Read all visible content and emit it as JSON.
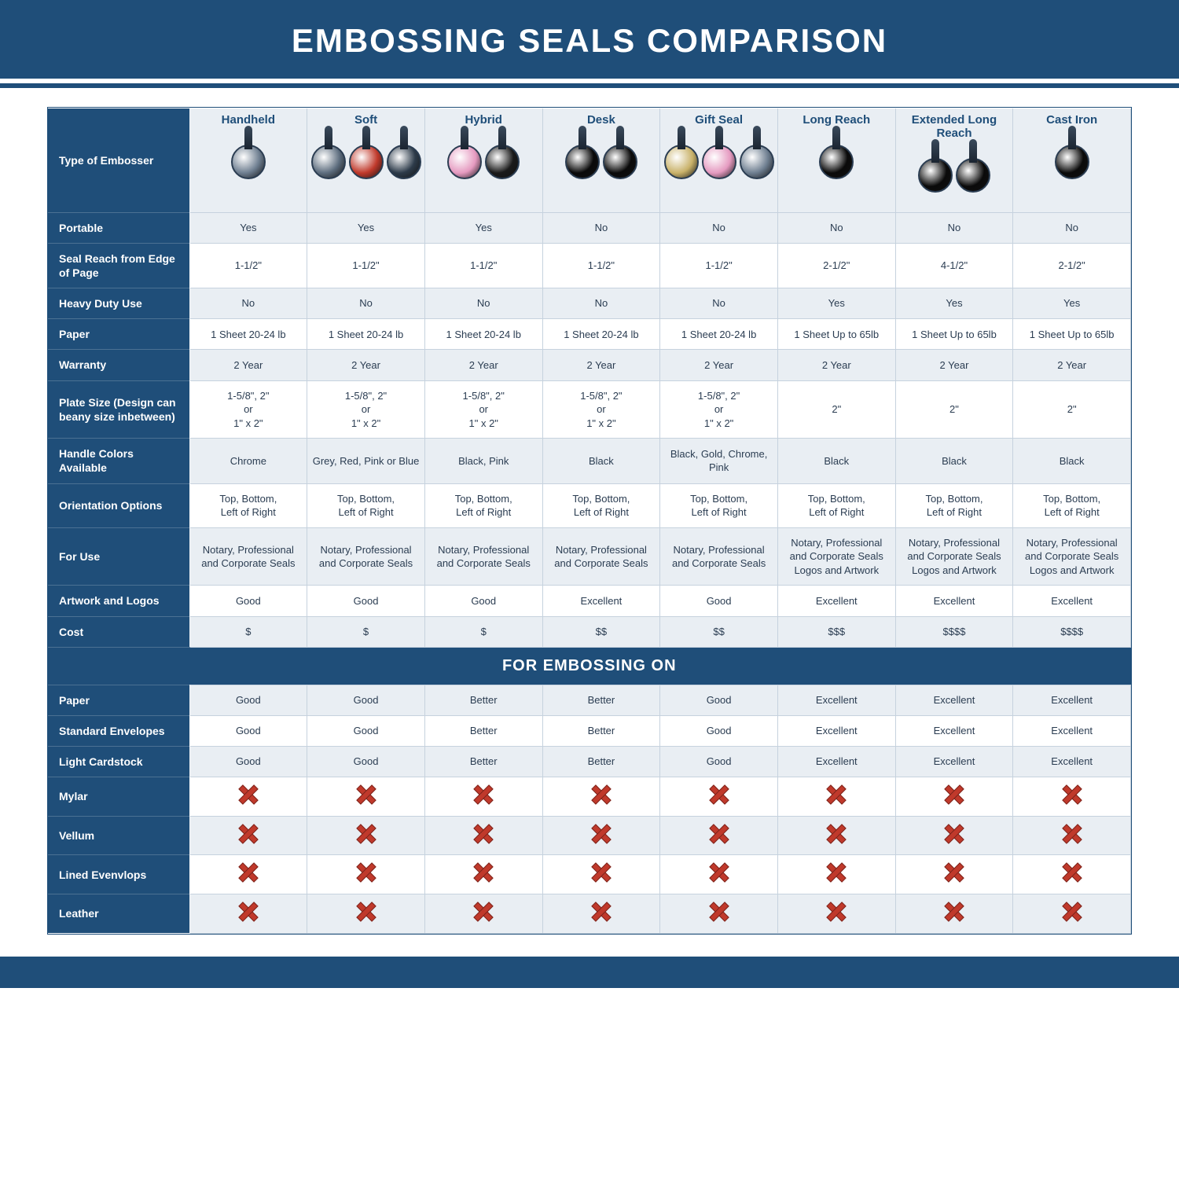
{
  "title": "EMBOSSING SEALS COMPARISON",
  "section_header": "FOR EMBOSSING ON",
  "colors": {
    "primary": "#1f4e79",
    "header_bg": "#e9eef3",
    "alt_row": "#e9eef3",
    "border": "#c6d2de",
    "text": "#2b3d52",
    "x_fill": "#c0392b",
    "x_border": "#7b241c"
  },
  "table": {
    "type": "comparison-table",
    "row_header_label": "Type of Embosser",
    "columns": [
      {
        "label": "Handheld",
        "icons": 1,
        "tints": [
          "#6e7e90"
        ]
      },
      {
        "label": "Soft",
        "icons": 3,
        "tints": [
          "#5d6d7e",
          "#c0392b",
          "#2d3b4a"
        ]
      },
      {
        "label": "Hybrid",
        "icons": 2,
        "tints": [
          "#e59ac0",
          "#1a1a1a"
        ]
      },
      {
        "label": "Desk",
        "icons": 2,
        "tints": [
          "#0a0a0a",
          "#0a0a0a"
        ]
      },
      {
        "label": "Gift Seal",
        "icons": 3,
        "tints": [
          "#c9b26a",
          "#e59ac0",
          "#6e7e90"
        ]
      },
      {
        "label": "Long Reach",
        "icons": 1,
        "tints": [
          "#0a0a0a"
        ]
      },
      {
        "label": "Extended Long Reach",
        "icons": 2,
        "tints": [
          "#0a0a0a",
          "#0a0a0a"
        ]
      },
      {
        "label": "Cast Iron",
        "icons": 1,
        "tints": [
          "#0a0a0a"
        ]
      }
    ],
    "specs": [
      {
        "label": "Portable",
        "alt": true,
        "cells": [
          "Yes",
          "Yes",
          "Yes",
          "No",
          "No",
          "No",
          "No",
          "No"
        ]
      },
      {
        "label": "Seal Reach from Edge of Page",
        "alt": false,
        "cells": [
          "1-1/2\"",
          "1-1/2\"",
          "1-1/2\"",
          "1-1/2\"",
          "1-1/2\"",
          "2-1/2\"",
          "4-1/2\"",
          "2-1/2\""
        ]
      },
      {
        "label": "Heavy Duty Use",
        "alt": true,
        "cells": [
          "No",
          "No",
          "No",
          "No",
          "No",
          "Yes",
          "Yes",
          "Yes"
        ]
      },
      {
        "label": "Paper",
        "alt": false,
        "cells": [
          "1 Sheet 20-24 lb",
          "1 Sheet 20-24 lb",
          "1 Sheet 20-24 lb",
          "1 Sheet 20-24 lb",
          "1 Sheet 20-24 lb",
          "1 Sheet Up to 65lb",
          "1 Sheet Up to 65lb",
          "1 Sheet Up to 65lb"
        ]
      },
      {
        "label": "Warranty",
        "alt": true,
        "cells": [
          "2 Year",
          "2 Year",
          "2 Year",
          "2 Year",
          "2 Year",
          "2 Year",
          "2 Year",
          "2 Year"
        ]
      },
      {
        "label": "Plate Size (Design can beany size inbetween)",
        "alt": false,
        "cells": [
          "1-5/8\", 2\"\nor\n1\" x 2\"",
          "1-5/8\", 2\"\nor\n1\" x 2\"",
          "1-5/8\", 2\"\nor\n1\" x 2\"",
          "1-5/8\", 2\"\nor\n1\" x 2\"",
          "1-5/8\", 2\"\nor\n1\" x 2\"",
          "2\"",
          "2\"",
          "2\""
        ]
      },
      {
        "label": "Handle Colors Available",
        "alt": true,
        "cells": [
          "Chrome",
          "Grey, Red, Pink or Blue",
          "Black, Pink",
          "Black",
          "Black, Gold, Chrome, Pink",
          "Black",
          "Black",
          "Black"
        ]
      },
      {
        "label": "Orientation Options",
        "alt": false,
        "cells": [
          "Top, Bottom,\nLeft of Right",
          "Top, Bottom,\nLeft of Right",
          "Top, Bottom,\nLeft of Right",
          "Top, Bottom,\nLeft of Right",
          "Top, Bottom,\nLeft of Right",
          "Top, Bottom,\nLeft of Right",
          "Top, Bottom,\nLeft of Right",
          "Top, Bottom,\nLeft of Right"
        ]
      },
      {
        "label": "For Use",
        "alt": true,
        "cells": [
          "Notary, Professional and Corporate Seals",
          "Notary, Professional and Corporate Seals",
          "Notary, Professional and Corporate Seals",
          "Notary, Professional and Corporate Seals",
          "Notary, Professional and Corporate Seals",
          "Notary, Professional and Corporate Seals Logos and Artwork",
          "Notary, Professional and Corporate Seals Logos and Artwork",
          "Notary, Professional and Corporate Seals Logos and Artwork"
        ]
      },
      {
        "label": "Artwork and Logos",
        "alt": false,
        "cells": [
          "Good",
          "Good",
          "Good",
          "Excellent",
          "Good",
          "Excellent",
          "Excellent",
          "Excellent"
        ]
      },
      {
        "label": "Cost",
        "alt": true,
        "cells": [
          "$",
          "$",
          "$",
          "$$",
          "$$",
          "$$$",
          "$$$$",
          "$$$$"
        ]
      }
    ],
    "embossing_on": [
      {
        "label": "Paper",
        "alt": true,
        "cells": [
          "Good",
          "Good",
          "Better",
          "Better",
          "Good",
          "Excellent",
          "Excellent",
          "Excellent"
        ]
      },
      {
        "label": "Standard Envelopes",
        "alt": false,
        "cells": [
          "Good",
          "Good",
          "Better",
          "Better",
          "Good",
          "Excellent",
          "Excellent",
          "Excellent"
        ]
      },
      {
        "label": "Light Cardstock",
        "alt": true,
        "cells": [
          "Good",
          "Good",
          "Better",
          "Better",
          "Good",
          "Excellent",
          "Excellent",
          "Excellent"
        ]
      },
      {
        "label": "Mylar",
        "alt": false,
        "cells": [
          "X",
          "X",
          "X",
          "X",
          "X",
          "X",
          "X",
          "X"
        ]
      },
      {
        "label": "Vellum",
        "alt": true,
        "cells": [
          "X",
          "X",
          "X",
          "X",
          "X",
          "X",
          "X",
          "X"
        ]
      },
      {
        "label": "Lined Evenvlops",
        "alt": false,
        "cells": [
          "X",
          "X",
          "X",
          "X",
          "X",
          "X",
          "X",
          "X"
        ]
      },
      {
        "label": "Leather",
        "alt": true,
        "cells": [
          "X",
          "X",
          "X",
          "X",
          "X",
          "X",
          "X",
          "X"
        ]
      }
    ]
  }
}
